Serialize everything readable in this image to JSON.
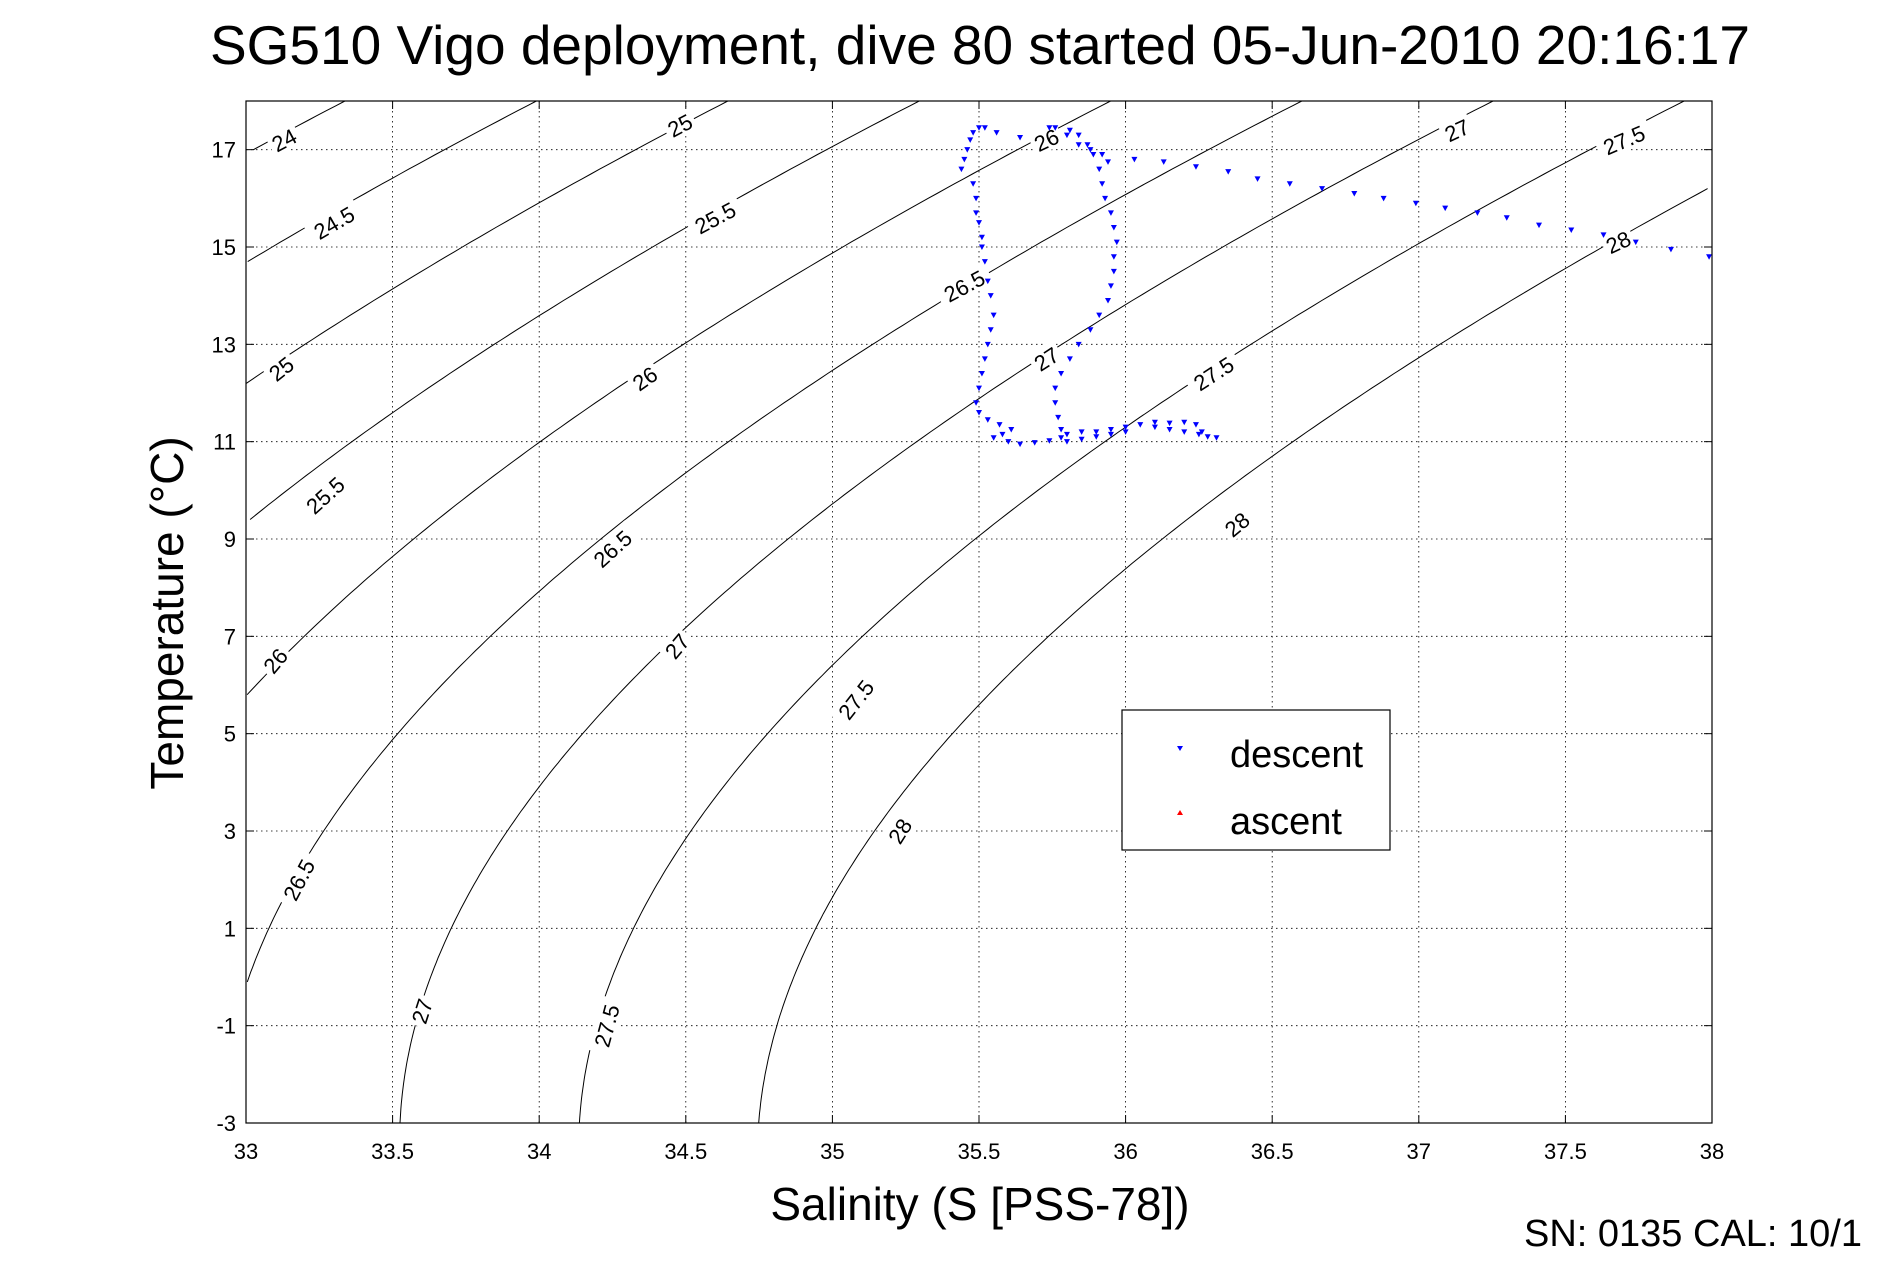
{
  "chart_data": {
    "type": "scatter",
    "title": "SG510 Vigo deployment, dive 80 started 05-Jun-2010 20:16:17",
    "xlabel": "Salinity (S [PSS-78])",
    "ylabel": "Temperature (°C)",
    "xlim": [
      33,
      38
    ],
    "ylim": [
      -3,
      18
    ],
    "xticks": [
      "33",
      "33.5",
      "34",
      "34.5",
      "35",
      "35.5",
      "36",
      "36.5",
      "37",
      "37.5",
      "38"
    ],
    "yticks": [
      "-3",
      "-1",
      "1",
      "3",
      "5",
      "7",
      "9",
      "11",
      "13",
      "15",
      "17"
    ],
    "grid": true,
    "legend_position": "center-right",
    "contour_levels": [
      "24",
      "24.5",
      "25",
      "25.5",
      "26",
      "26.5",
      "27",
      "27.5",
      "28"
    ],
    "contour_labels": [
      {
        "text": "24",
        "s": 33.13,
        "t": 17.2,
        "angle": -28
      },
      {
        "text": "25",
        "s": 34.48,
        "t": 17.5,
        "angle": -28
      },
      {
        "text": "26",
        "s": 35.73,
        "t": 17.2,
        "angle": -25
      },
      {
        "text": "27",
        "s": 37.13,
        "t": 17.4,
        "angle": -25
      },
      {
        "text": "27.5",
        "s": 37.7,
        "t": 17.2,
        "angle": -23
      },
      {
        "text": "24.5",
        "s": 33.3,
        "t": 15.5,
        "angle": -30
      },
      {
        "text": "25.5",
        "s": 34.6,
        "t": 15.6,
        "angle": -28
      },
      {
        "text": "28",
        "s": 37.68,
        "t": 15.1,
        "angle": -25
      },
      {
        "text": "26.5",
        "s": 35.45,
        "t": 14.2,
        "angle": -28
      },
      {
        "text": "25",
        "s": 33.12,
        "t": 12.5,
        "angle": -38
      },
      {
        "text": "26",
        "s": 34.36,
        "t": 12.3,
        "angle": -35
      },
      {
        "text": "27",
        "s": 35.73,
        "t": 12.7,
        "angle": -33
      },
      {
        "text": "27.5",
        "s": 36.3,
        "t": 12.4,
        "angle": -33
      },
      {
        "text": "25.5",
        "s": 33.27,
        "t": 9.9,
        "angle": -42
      },
      {
        "text": "26.5",
        "s": 34.25,
        "t": 8.8,
        "angle": -42
      },
      {
        "text": "28",
        "s": 36.38,
        "t": 9.3,
        "angle": -40
      },
      {
        "text": "26",
        "s": 33.1,
        "t": 6.5,
        "angle": -50
      },
      {
        "text": "27",
        "s": 34.47,
        "t": 6.8,
        "angle": -50
      },
      {
        "text": "27.5",
        "s": 35.08,
        "t": 5.7,
        "angle": -52
      },
      {
        "text": "28",
        "s": 35.23,
        "t": 3.0,
        "angle": -58
      },
      {
        "text": "26.5",
        "s": 33.18,
        "t": 2.0,
        "angle": -62
      },
      {
        "text": "27",
        "s": 33.6,
        "t": -0.7,
        "angle": -72
      },
      {
        "text": "27.5",
        "s": 34.23,
        "t": -1.0,
        "angle": -75
      }
    ],
    "series": [
      {
        "name": "descent",
        "color": "#0000ff",
        "marker": "triangle-down",
        "points": [
          [
            35.44,
            16.6
          ],
          [
            35.45,
            16.8
          ],
          [
            35.46,
            17.0
          ],
          [
            35.47,
            17.2
          ],
          [
            35.48,
            17.35
          ],
          [
            35.5,
            17.45
          ],
          [
            35.52,
            17.45
          ],
          [
            35.56,
            17.35
          ],
          [
            35.64,
            17.25
          ],
          [
            35.74,
            17.45
          ],
          [
            35.76,
            17.45
          ],
          [
            35.8,
            17.3
          ],
          [
            35.84,
            17.1
          ],
          [
            35.88,
            17.0
          ],
          [
            35.92,
            16.9
          ],
          [
            35.94,
            16.75
          ],
          [
            36.03,
            16.8
          ],
          [
            36.13,
            16.75
          ],
          [
            36.24,
            16.65
          ],
          [
            36.35,
            16.55
          ],
          [
            36.45,
            16.4
          ],
          [
            36.56,
            16.3
          ],
          [
            36.67,
            16.2
          ],
          [
            36.78,
            16.1
          ],
          [
            36.88,
            16.0
          ],
          [
            36.99,
            15.9
          ],
          [
            37.09,
            15.8
          ],
          [
            37.2,
            15.7
          ],
          [
            37.3,
            15.6
          ],
          [
            37.41,
            15.45
          ],
          [
            37.52,
            15.35
          ],
          [
            37.63,
            15.25
          ],
          [
            37.74,
            15.1
          ],
          [
            37.86,
            14.95
          ],
          [
            37.99,
            14.8
          ],
          [
            35.48,
            16.3
          ],
          [
            35.49,
            16.0
          ],
          [
            35.49,
            15.7
          ],
          [
            35.5,
            15.5
          ],
          [
            35.51,
            15.2
          ],
          [
            35.51,
            15.0
          ],
          [
            35.52,
            14.7
          ],
          [
            35.53,
            14.3
          ],
          [
            35.54,
            14.0
          ],
          [
            35.55,
            13.6
          ],
          [
            35.54,
            13.3
          ],
          [
            35.53,
            13.0
          ],
          [
            35.52,
            12.7
          ],
          [
            35.51,
            12.4
          ],
          [
            35.5,
            12.1
          ],
          [
            35.49,
            11.8
          ],
          [
            35.5,
            11.6
          ],
          [
            35.53,
            11.45
          ],
          [
            35.57,
            11.35
          ],
          [
            35.61,
            11.25
          ],
          [
            35.58,
            11.15
          ],
          [
            35.55,
            11.08
          ],
          [
            35.6,
            11.0
          ],
          [
            35.64,
            10.95
          ],
          [
            35.69,
            10.98
          ],
          [
            35.74,
            11.02
          ],
          [
            35.78,
            11.08
          ],
          [
            35.8,
            11.0
          ],
          [
            35.85,
            11.05
          ],
          [
            35.9,
            11.1
          ],
          [
            35.95,
            11.15
          ],
          [
            36.0,
            11.2
          ],
          [
            36.05,
            11.35
          ],
          [
            36.1,
            11.4
          ],
          [
            36.15,
            11.38
          ],
          [
            36.2,
            11.4
          ],
          [
            36.24,
            11.35
          ],
          [
            36.26,
            11.2
          ],
          [
            36.28,
            11.1
          ],
          [
            36.31,
            11.08
          ],
          [
            36.25,
            11.15
          ],
          [
            36.2,
            11.2
          ],
          [
            36.15,
            11.25
          ],
          [
            36.1,
            11.3
          ],
          [
            36.0,
            11.3
          ],
          [
            35.95,
            11.25
          ],
          [
            35.9,
            11.2
          ],
          [
            35.85,
            11.2
          ],
          [
            35.8,
            11.15
          ],
          [
            35.78,
            11.25
          ],
          [
            35.77,
            11.5
          ],
          [
            35.76,
            11.8
          ],
          [
            35.76,
            12.1
          ],
          [
            35.78,
            12.4
          ],
          [
            35.81,
            12.7
          ],
          [
            35.84,
            13.0
          ],
          [
            35.88,
            13.3
          ],
          [
            35.91,
            13.6
          ],
          [
            35.94,
            13.9
          ],
          [
            35.95,
            14.2
          ],
          [
            35.96,
            14.5
          ],
          [
            35.96,
            14.8
          ],
          [
            35.97,
            15.1
          ],
          [
            35.96,
            15.4
          ],
          [
            35.95,
            15.7
          ],
          [
            35.93,
            16.0
          ],
          [
            35.92,
            16.3
          ],
          [
            35.91,
            16.6
          ],
          [
            35.89,
            16.9
          ],
          [
            35.87,
            17.1
          ],
          [
            35.84,
            17.3
          ],
          [
            35.81,
            17.4
          ]
        ]
      },
      {
        "name": "ascent",
        "color": "#ff0000",
        "marker": "triangle-up",
        "points": []
      }
    ]
  },
  "footer": "SN: 0135  CAL: 10/1"
}
